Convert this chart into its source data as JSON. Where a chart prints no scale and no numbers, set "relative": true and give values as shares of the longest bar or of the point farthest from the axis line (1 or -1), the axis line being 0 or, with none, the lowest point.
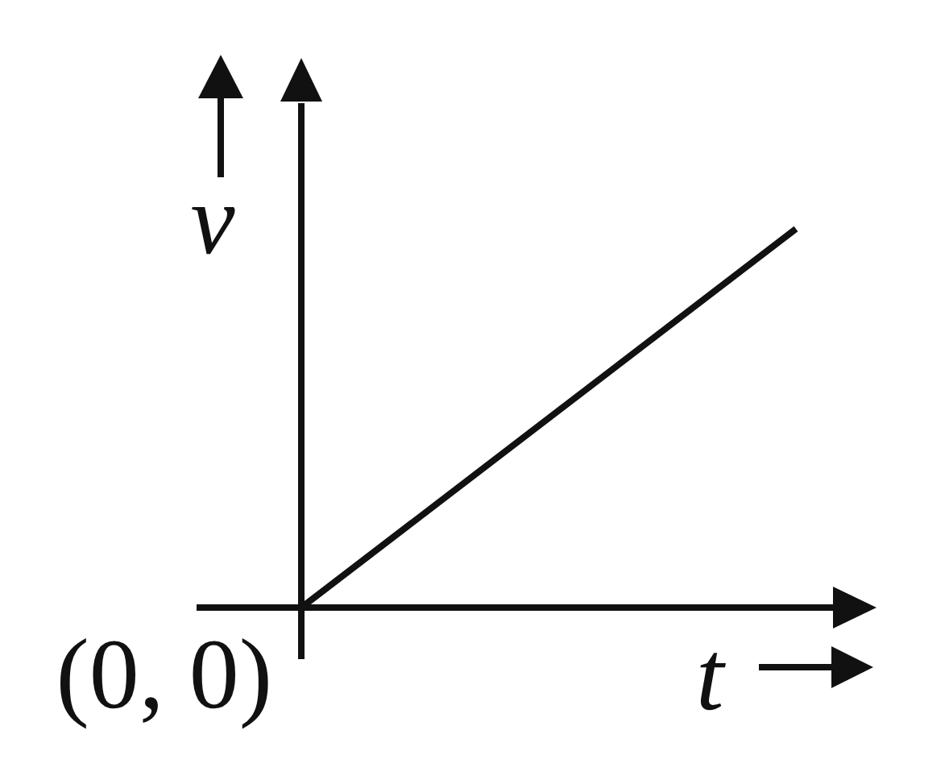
{
  "chart_data": {
    "type": "line",
    "xlabel": "t",
    "ylabel": "v",
    "annotations": [
      "(0, 0)"
    ],
    "categories": [
      null,
      null
    ],
    "series": [
      {
        "color": "#111111",
        "values": [
          0,
          1
        ]
      }
    ],
    "relative": true,
    "marker": "none",
    "legend": false
  }
}
